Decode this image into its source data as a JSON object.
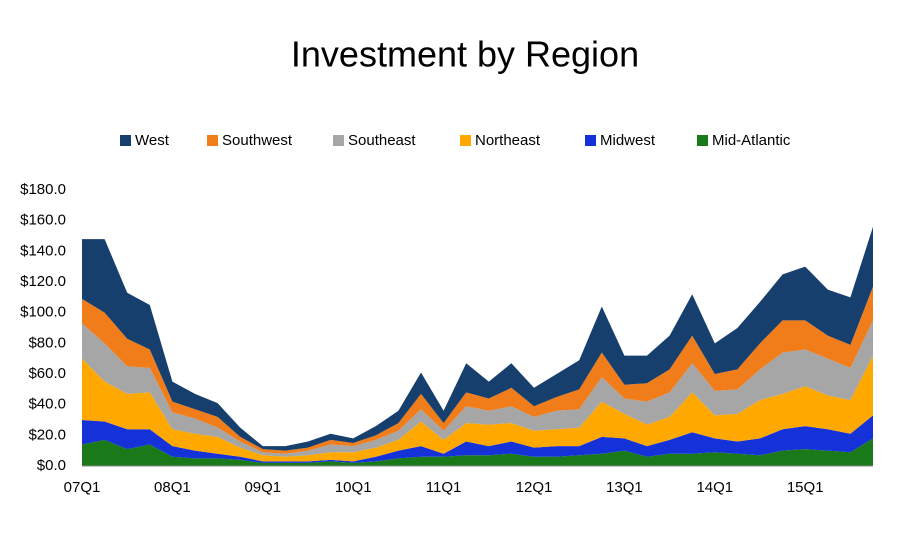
{
  "chart_data": {
    "type": "stacked_area",
    "title": "Investment by Region",
    "categories": [
      "07Q1",
      null,
      null,
      null,
      "08Q1",
      null,
      null,
      null,
      "09Q1",
      null,
      null,
      null,
      "10Q1",
      null,
      null,
      null,
      "11Q1",
      null,
      null,
      null,
      "12Q1",
      null,
      null,
      null,
      "13Q1",
      null,
      null,
      null,
      "14Q1",
      null,
      null,
      null,
      "15Q1",
      null,
      null,
      null
    ],
    "series": [
      {
        "name": "West",
        "color": "#173f6e",
        "values": [
          39,
          48,
          30,
          29,
          13,
          10,
          9,
          6,
          2,
          3,
          4,
          4,
          3,
          6,
          8,
          14,
          8,
          19,
          11,
          16,
          12,
          15,
          19,
          30,
          19,
          18,
          22,
          27,
          20,
          27,
          27,
          30,
          35,
          30,
          31,
          39
        ]
      },
      {
        "name": "Southwest",
        "color": "#f07d1a",
        "values": [
          16,
          20,
          18,
          12,
          7,
          6,
          7,
          3,
          2,
          2,
          2,
          3,
          2,
          3,
          5,
          10,
          5,
          9,
          8,
          12,
          7,
          9,
          13,
          16,
          9,
          12,
          15,
          18,
          11,
          13,
          17,
          21,
          19,
          15,
          15,
          22
        ]
      },
      {
        "name": "Southeast",
        "color": "#a6a6a6",
        "values": [
          23,
          25,
          18,
          16,
          11,
          10,
          6,
          4,
          2,
          2,
          3,
          5,
          4,
          5,
          6,
          8,
          6,
          11,
          9,
          11,
          9,
          12,
          12,
          16,
          10,
          15,
          16,
          19,
          16,
          16,
          20,
          27,
          24,
          24,
          21,
          23
        ]
      },
      {
        "name": "Northeast",
        "color": "#ffa800",
        "values": [
          40,
          26,
          23,
          24,
          11,
          11,
          11,
          6,
          4,
          3,
          4,
          5,
          6,
          6,
          7,
          16,
          9,
          12,
          14,
          12,
          11,
          11,
          12,
          23,
          16,
          14,
          15,
          26,
          15,
          18,
          25,
          23,
          26,
          22,
          22,
          39
        ]
      },
      {
        "name": "Midwest",
        "color": "#1432d8",
        "values": [
          16,
          12,
          13,
          10,
          7,
          5,
          3,
          2,
          1,
          1,
          1,
          1,
          1,
          3,
          5,
          7,
          2,
          9,
          6,
          8,
          6,
          7,
          6,
          11,
          8,
          7,
          9,
          14,
          9,
          8,
          11,
          14,
          15,
          14,
          12,
          15
        ]
      },
      {
        "name": "Mid-Atlantic",
        "color": "#1a7a1a",
        "values": [
          14,
          17,
          11,
          14,
          6,
          5,
          5,
          4,
          2,
          2,
          2,
          3,
          2,
          3,
          5,
          6,
          6,
          7,
          7,
          8,
          6,
          6,
          7,
          8,
          10,
          6,
          8,
          8,
          9,
          8,
          7,
          10,
          11,
          10,
          9,
          18
        ]
      }
    ],
    "ylim": [
      0,
      180
    ],
    "yticks": [
      {
        "value": 0,
        "label": "$0.0"
      },
      {
        "value": 20,
        "label": "$20.0"
      },
      {
        "value": 40,
        "label": "$40.0"
      },
      {
        "value": 60,
        "label": "$60.0"
      },
      {
        "value": 80,
        "label": "$80.0"
      },
      {
        "value": 100,
        "label": "$100.0"
      },
      {
        "value": 120,
        "label": "$120.0"
      },
      {
        "value": 140,
        "label": "$140.0"
      },
      {
        "value": 160,
        "label": "$160.0"
      },
      {
        "value": 180,
        "label": "$180.0"
      }
    ],
    "grid": false,
    "legend": "top"
  }
}
